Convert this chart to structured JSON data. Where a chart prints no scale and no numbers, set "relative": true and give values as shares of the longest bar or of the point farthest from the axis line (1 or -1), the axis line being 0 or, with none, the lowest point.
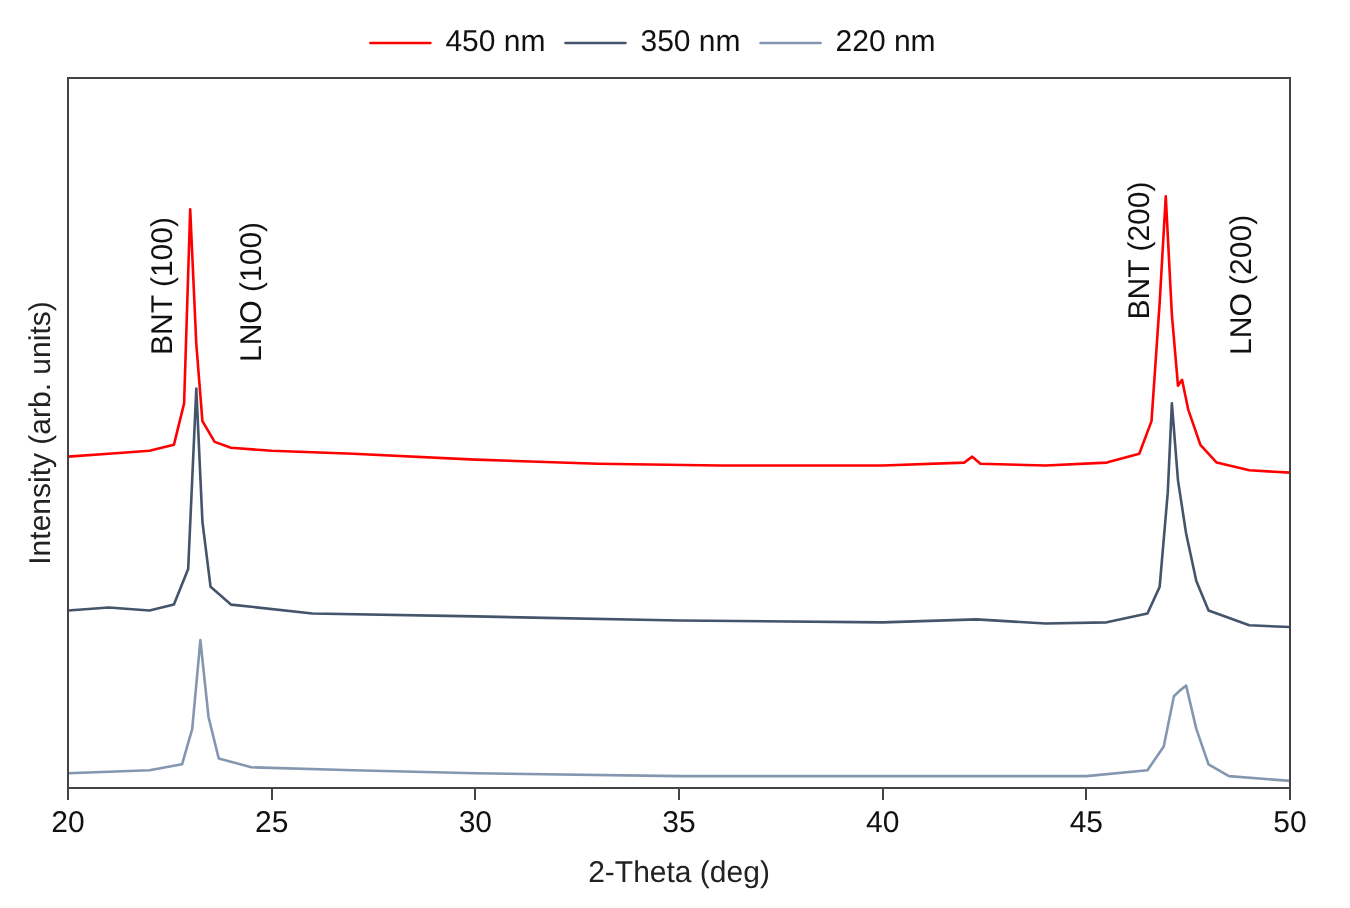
{
  "chart_data": {
    "type": "line",
    "relative": true,
    "xlabel": "2-Theta (deg)",
    "ylabel": "Intensity (arb. units)",
    "xlim": [
      20,
      50
    ],
    "xticks": [
      20,
      25,
      30,
      35,
      40,
      45,
      50
    ],
    "grid": false,
    "legend": "top",
    "marker": "none",
    "line_style": "solid",
    "series": [
      {
        "name": "450 nm",
        "color": "#ff0000",
        "x": [
          20,
          21,
          22,
          22.6,
          22.85,
          23.0,
          23.15,
          23.3,
          23.6,
          24,
          25,
          27,
          30,
          33,
          36,
          40,
          42,
          42.2,
          42.4,
          44,
          45.5,
          46.3,
          46.6,
          46.8,
          46.95,
          47.1,
          47.25,
          47.35,
          47.5,
          47.8,
          48.2,
          49,
          50
        ],
        "values": [
          0.56,
          0.565,
          0.57,
          0.58,
          0.65,
          0.978,
          0.75,
          0.62,
          0.585,
          0.575,
          0.57,
          0.565,
          0.555,
          0.548,
          0.545,
          0.545,
          0.55,
          0.56,
          0.548,
          0.545,
          0.55,
          0.565,
          0.62,
          0.82,
          1.0,
          0.8,
          0.68,
          0.69,
          0.64,
          0.58,
          0.55,
          0.537,
          0.533
        ]
      },
      {
        "name": "350 nm",
        "color": "#44546a",
        "x": [
          20,
          21,
          22,
          22.6,
          22.95,
          23.15,
          23.3,
          23.5,
          24,
          26,
          30,
          35,
          40,
          42.3,
          44,
          45.5,
          46.5,
          46.8,
          47.0,
          47.1,
          47.25,
          47.45,
          47.7,
          48,
          49,
          50
        ],
        "values": [
          0.3,
          0.305,
          0.3,
          0.31,
          0.37,
          0.675,
          0.45,
          0.34,
          0.31,
          0.295,
          0.29,
          0.283,
          0.28,
          0.285,
          0.278,
          0.28,
          0.295,
          0.34,
          0.5,
          0.65,
          0.52,
          0.43,
          0.35,
          0.3,
          0.275,
          0.272
        ]
      },
      {
        "name": "220 nm",
        "color": "#8497b0",
        "x": [
          20,
          22,
          22.8,
          23.05,
          23.25,
          23.45,
          23.7,
          24.5,
          27,
          30,
          35,
          40,
          45,
          46.5,
          46.9,
          47.15,
          47.3,
          47.45,
          47.7,
          48,
          48.5,
          50
        ],
        "values": [
          0.025,
          0.03,
          0.04,
          0.1,
          0.25,
          0.12,
          0.05,
          0.035,
          0.03,
          0.025,
          0.02,
          0.02,
          0.02,
          0.03,
          0.07,
          0.155,
          0.165,
          0.173,
          0.1,
          0.04,
          0.02,
          0.012
        ]
      }
    ],
    "annotations": [
      "BNT (100)",
      "LNO (100)",
      "BNT (200)",
      "LNO (200)"
    ]
  }
}
